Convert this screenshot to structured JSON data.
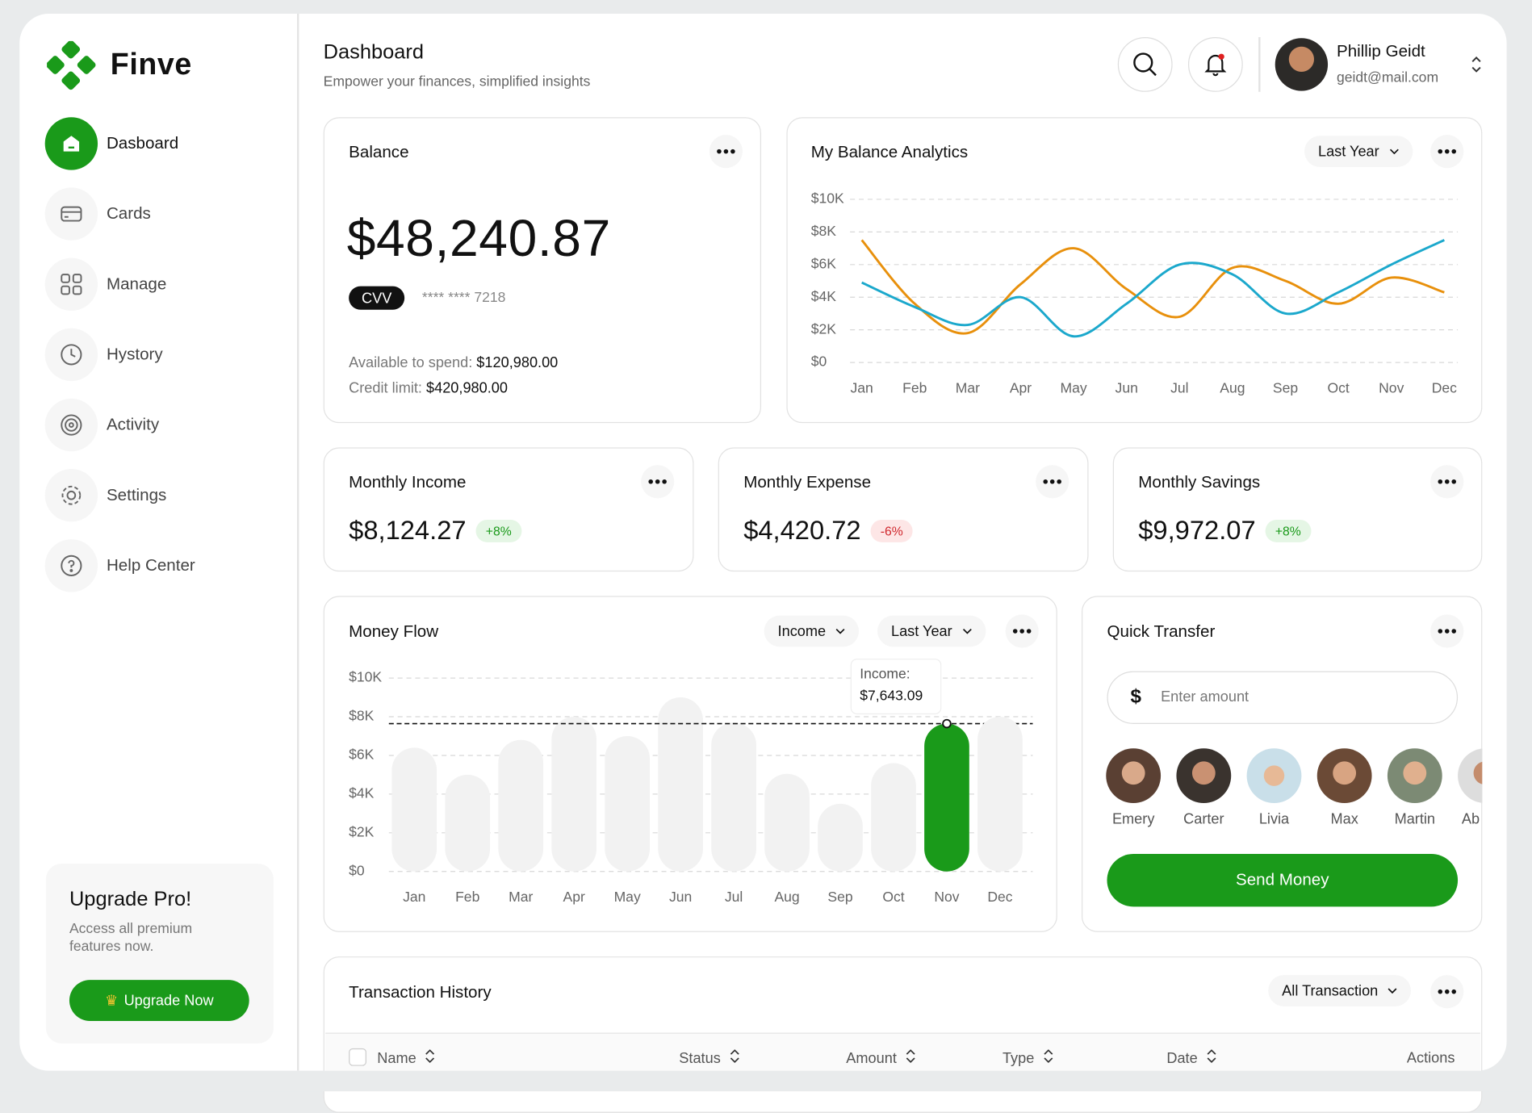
{
  "brand": "Finve",
  "nav": [
    "Dasboard",
    "Cards",
    "Manage",
    "Hystory",
    "Activity",
    "Settings",
    "Help Center"
  ],
  "upgrade": {
    "title": "Upgrade Pro!",
    "text": "Access all premium features now.",
    "button": "Upgrade Now"
  },
  "header": {
    "title": "Dashboard",
    "subtitle": "Empower your finances, simplified insights",
    "user_name": "Phillip Geidt",
    "user_email": "geidt@mail.com"
  },
  "balance": {
    "title": "Balance",
    "amount": "$48,240.87",
    "cvv": "CVV",
    "card_number": "**** **** 7218",
    "available_label": "Available to spend:",
    "available": "$120,980.00",
    "credit_label": "Credit limit:",
    "credit": "$420,980.00"
  },
  "stats": [
    {
      "title": "Monthly Income",
      "amount": "$8,124.27",
      "change": "+8%"
    },
    {
      "title": "Monthly Expense",
      "amount": "$4,420.72",
      "change": "-6%"
    },
    {
      "title": "Monthly Savings",
      "amount": "$9,972.07",
      "change": "+8%"
    }
  ],
  "balance_analytics": {
    "title": "My Balance Analytics",
    "filter": "Last Year"
  },
  "money_flow": {
    "title": "Money Flow",
    "filters": [
      "Income",
      "Last Year"
    ]
  },
  "quick_transfer": {
    "title": "Quick Transfer",
    "currency": "$",
    "placeholder": "Enter amount",
    "contacts": [
      "Emery",
      "Carter",
      "Livia",
      "Max",
      "Martin",
      "Ab"
    ],
    "button": "Send Money"
  },
  "transactions": {
    "title": "Transaction History",
    "filter": "All Transaction",
    "columns": [
      "Name",
      "Status",
      "Amount",
      "Type",
      "Date",
      "Actions"
    ]
  },
  "chart_data": [
    {
      "type": "line",
      "categories": [
        "Jan",
        "Feb",
        "Mar",
        "Apr",
        "May",
        "Jun",
        "Jul",
        "Aug",
        "Sep",
        "Oct",
        "Nov",
        "Dec"
      ],
      "series": [
        {
          "color": "#e8900c",
          "values": [
            7500,
            3600,
            1800,
            4800,
            7000,
            4500,
            2800,
            5800,
            5000,
            3600,
            5200,
            4300
          ]
        },
        {
          "color": "#1ba8cc",
          "values": [
            4900,
            3400,
            2300,
            4000,
            1600,
            3600,
            6000,
            5400,
            3000,
            4300,
            6000,
            7500
          ]
        }
      ],
      "ylim": [
        0,
        10000
      ],
      "yticks": [
        {
          "value": 0,
          "label": "$0"
        },
        {
          "value": 2000,
          "label": "$2K"
        },
        {
          "value": 4000,
          "label": "$4K"
        },
        {
          "value": 6000,
          "label": "$6K"
        },
        {
          "value": 8000,
          "label": "$8K"
        },
        {
          "value": 10000,
          "label": "$10K"
        }
      ],
      "grid": true
    },
    {
      "type": "bar",
      "categories": [
        "Jan",
        "Feb",
        "Mar",
        "Apr",
        "May",
        "Jun",
        "Jul",
        "Aug",
        "Sep",
        "Oct",
        "Nov",
        "Dec"
      ],
      "values": [
        6400,
        5000,
        6800,
        8000,
        7000,
        9000,
        7700,
        5050,
        3500,
        5600,
        7643.09,
        8000
      ],
      "value_labels": [
        null,
        null,
        null,
        null,
        null,
        null,
        null,
        null,
        null,
        null,
        "$7,643.09",
        null
      ],
      "tooltip_label": "Income:",
      "color": "#f2f2f2",
      "highlight_color": "#1a9a1a",
      "highlight_index": 10,
      "ylim": [
        0,
        10000
      ],
      "yticks": [
        {
          "value": 0,
          "label": "$0"
        },
        {
          "value": 2000,
          "label": "$2K"
        },
        {
          "value": 4000,
          "label": "$4K"
        },
        {
          "value": 6000,
          "label": "$6K"
        },
        {
          "value": 8000,
          "label": "$8K"
        },
        {
          "value": 10000,
          "label": "$10K"
        }
      ],
      "grid": true
    }
  ]
}
